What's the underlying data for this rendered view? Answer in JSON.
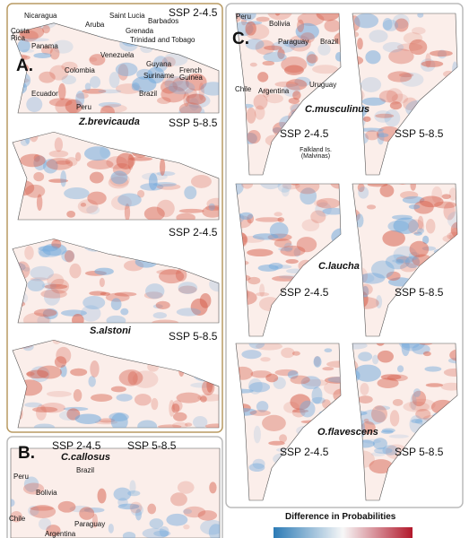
{
  "panel_a": {
    "label": "A.",
    "map_labels": [
      "Nicaragua",
      "Costa Rica",
      "Panama",
      "Aruba",
      "Saint Lucia",
      "Barbados",
      "Grenada",
      "Trinidad and Tobago",
      "Venezuela",
      "Colombia",
      "Guyana",
      "Suriname",
      "French Guinea",
      "Ecuador",
      "Peru",
      "Brazil"
    ],
    "maps": [
      {
        "scenario": "SSP 2-4.5"
      },
      {
        "species": "Z.brevicauda",
        "scenario": "SSP 5-8.5"
      },
      {
        "scenario": "SSP 2-4.5"
      },
      {
        "species": "S.alstoni",
        "scenario": "SSP 5-8.5"
      }
    ]
  },
  "panel_b": {
    "label": "B.",
    "species": "C.callosus",
    "scenarios": [
      "SSP 2-4.5",
      "SSP 5-8.5"
    ],
    "map_labels": [
      "Brazil",
      "Peru",
      "Bolivia",
      "Chile",
      "Paraguay",
      "Argentina"
    ]
  },
  "panel_c": {
    "label": "C.",
    "map_labels": [
      "Peru",
      "Bolivia",
      "Paraguay",
      "Brazil",
      "Chile",
      "Argentina",
      "Uruguay"
    ],
    "note": "Falkland Is. (Malvinas)",
    "rows": [
      {
        "species": "C.musculinus",
        "scenarios": [
          "SSP 2-4.5",
          "SSP 5-8.5"
        ]
      },
      {
        "species": "C.laucha",
        "scenarios": [
          "SSP 2-4.5",
          "SSP 5-8.5"
        ]
      },
      {
        "species": "O.flavescens",
        "scenarios": [
          "SSP 2-4.5",
          "SSP 5-8.5"
        ]
      }
    ]
  },
  "legend": {
    "title": "Difference in Probabilities"
  }
}
